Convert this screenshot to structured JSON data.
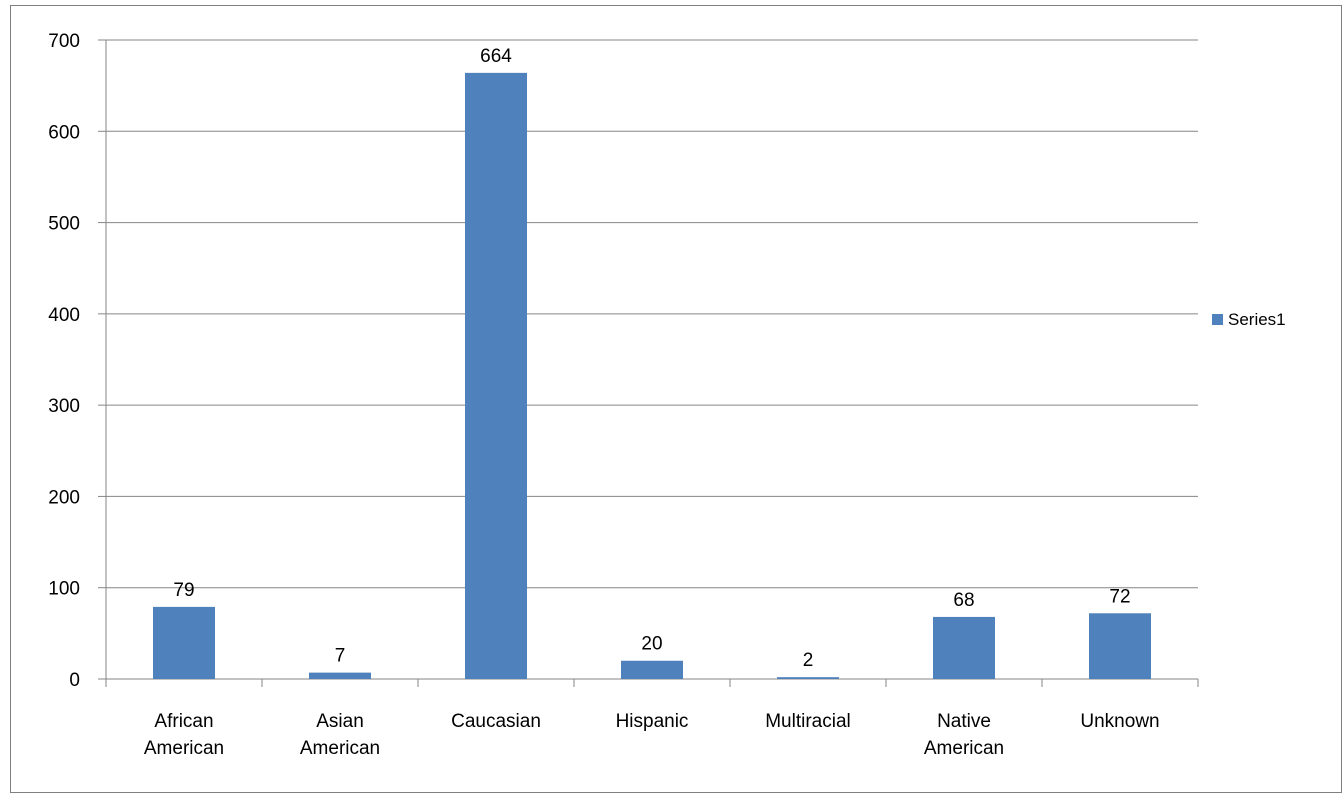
{
  "chart_data": {
    "type": "bar",
    "categories": [
      [
        "African",
        "American"
      ],
      [
        "Asian",
        "American"
      ],
      [
        "Caucasian"
      ],
      [
        "Hispanic"
      ],
      [
        "Multiracial"
      ],
      [
        "Native",
        "American"
      ],
      [
        "Unknown"
      ]
    ],
    "series": [
      {
        "name": "Series1",
        "values": [
          79,
          7,
          664,
          20,
          2,
          68,
          72
        ],
        "color": "#4F81BD"
      }
    ],
    "data_labels": [
      "79",
      "7",
      "664",
      "20",
      "2",
      "68",
      "72"
    ],
    "ylim": [
      0,
      700
    ],
    "yticks": [
      0,
      100,
      200,
      300,
      400,
      500,
      600,
      700
    ],
    "grid": true,
    "legend_position": "right",
    "title": "",
    "xlabel": "",
    "ylabel": ""
  },
  "colors": {
    "bar": "#4F81BD",
    "grid": "#868686",
    "axis": "#868686",
    "frame": "#7f7f7f"
  }
}
